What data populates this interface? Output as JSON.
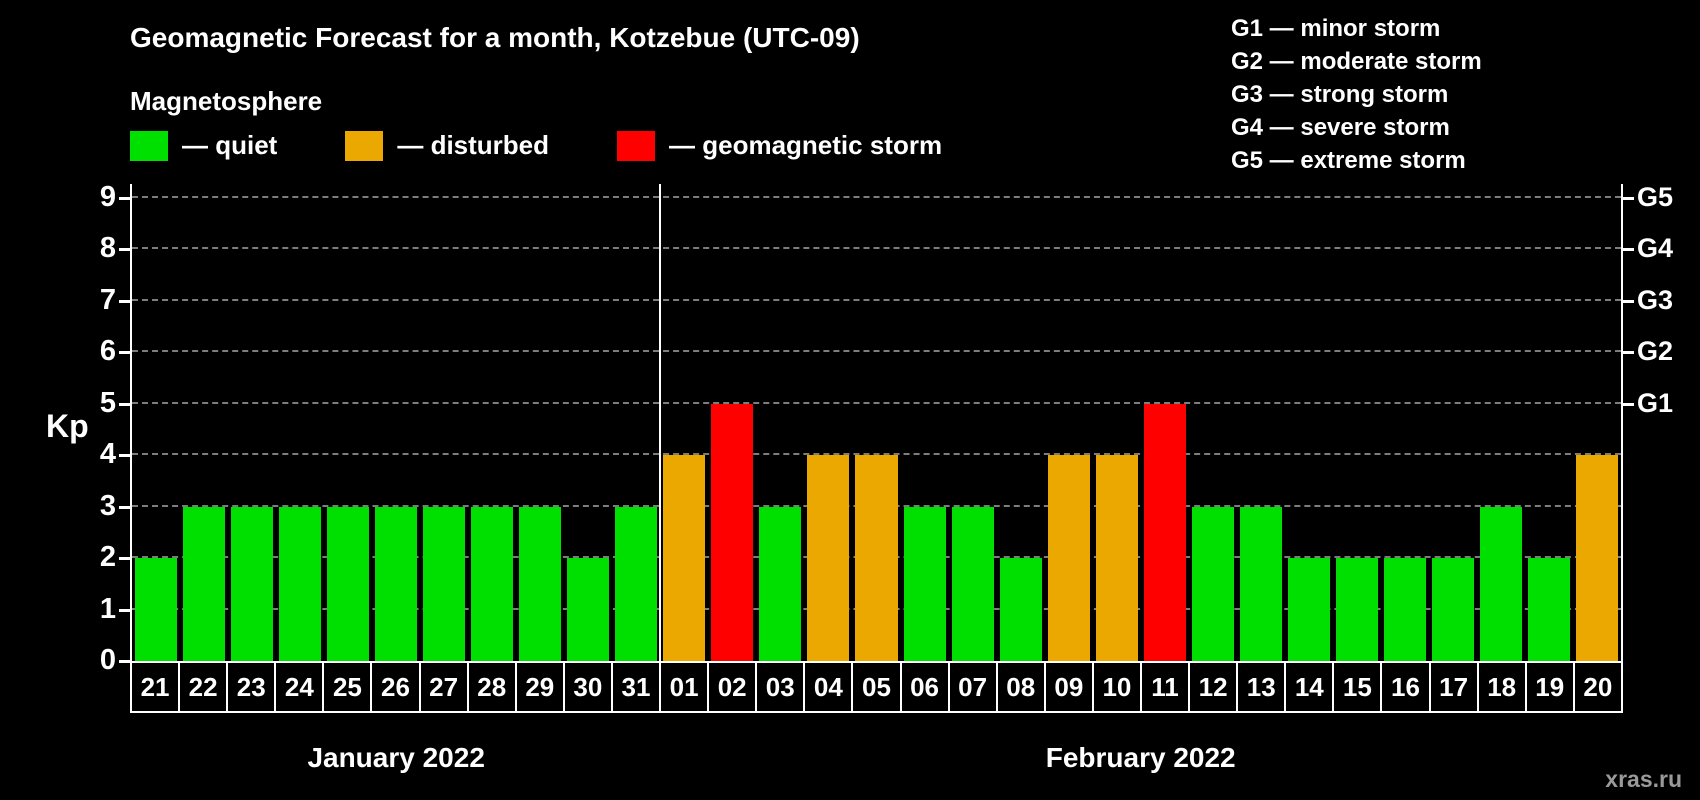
{
  "header": {
    "title": "Geomagnetic Forecast for a month, Kotzebue (UTC-09)",
    "subtitle": "Magnetosphere"
  },
  "legend": {
    "items": [
      {
        "key": "quiet",
        "label": "— quiet",
        "color": "#00e000"
      },
      {
        "key": "disturbed",
        "label": "— disturbed",
        "color": "#eba800"
      },
      {
        "key": "storm",
        "label": "— geomagnetic storm",
        "color": "#ff0000"
      }
    ]
  },
  "storm_scale_legend": [
    "G1 — minor storm",
    "G2 — moderate storm",
    "G3 — strong storm",
    "G4 — severe storm",
    "G5 — extreme storm"
  ],
  "axes": {
    "y_label": "Kp",
    "y_ticks": [
      0,
      1,
      2,
      3,
      4,
      5,
      6,
      7,
      8,
      9
    ],
    "right_ticks": [
      {
        "label": "G1",
        "kp": 5
      },
      {
        "label": "G2",
        "kp": 6
      },
      {
        "label": "G3",
        "kp": 7
      },
      {
        "label": "G4",
        "kp": 8
      },
      {
        "label": "G5",
        "kp": 9
      }
    ]
  },
  "chart_data": {
    "type": "bar",
    "title": "Geomagnetic Forecast for a month, Kotzebue (UTC-09)",
    "ylabel": "Kp",
    "ylim": [
      0,
      9
    ],
    "grid": "horizontal-dashed",
    "categories": [
      "21",
      "22",
      "23",
      "24",
      "25",
      "26",
      "27",
      "28",
      "29",
      "30",
      "31",
      "01",
      "02",
      "03",
      "04",
      "05",
      "06",
      "07",
      "08",
      "09",
      "10",
      "11",
      "12",
      "13",
      "14",
      "15",
      "16",
      "17",
      "18",
      "19",
      "20"
    ],
    "values": [
      2,
      3,
      3,
      3,
      3,
      3,
      3,
      3,
      3,
      2,
      3,
      4,
      5,
      3,
      4,
      4,
      3,
      3,
      2,
      4,
      4,
      5,
      3,
      3,
      2,
      2,
      2,
      2,
      3,
      2,
      4
    ],
    "statuses": [
      "quiet",
      "quiet",
      "quiet",
      "quiet",
      "quiet",
      "quiet",
      "quiet",
      "quiet",
      "quiet",
      "quiet",
      "quiet",
      "disturbed",
      "storm",
      "quiet",
      "disturbed",
      "disturbed",
      "quiet",
      "quiet",
      "quiet",
      "disturbed",
      "disturbed",
      "storm",
      "quiet",
      "quiet",
      "quiet",
      "quiet",
      "quiet",
      "quiet",
      "quiet",
      "quiet",
      "disturbed"
    ],
    "status_colors": {
      "quiet": "#00e000",
      "disturbed": "#eba800",
      "storm": "#ff0000"
    },
    "months": [
      {
        "label": "January 2022",
        "span": 11
      },
      {
        "label": "February 2022",
        "span": 20
      }
    ]
  },
  "watermark": "xras.ru"
}
